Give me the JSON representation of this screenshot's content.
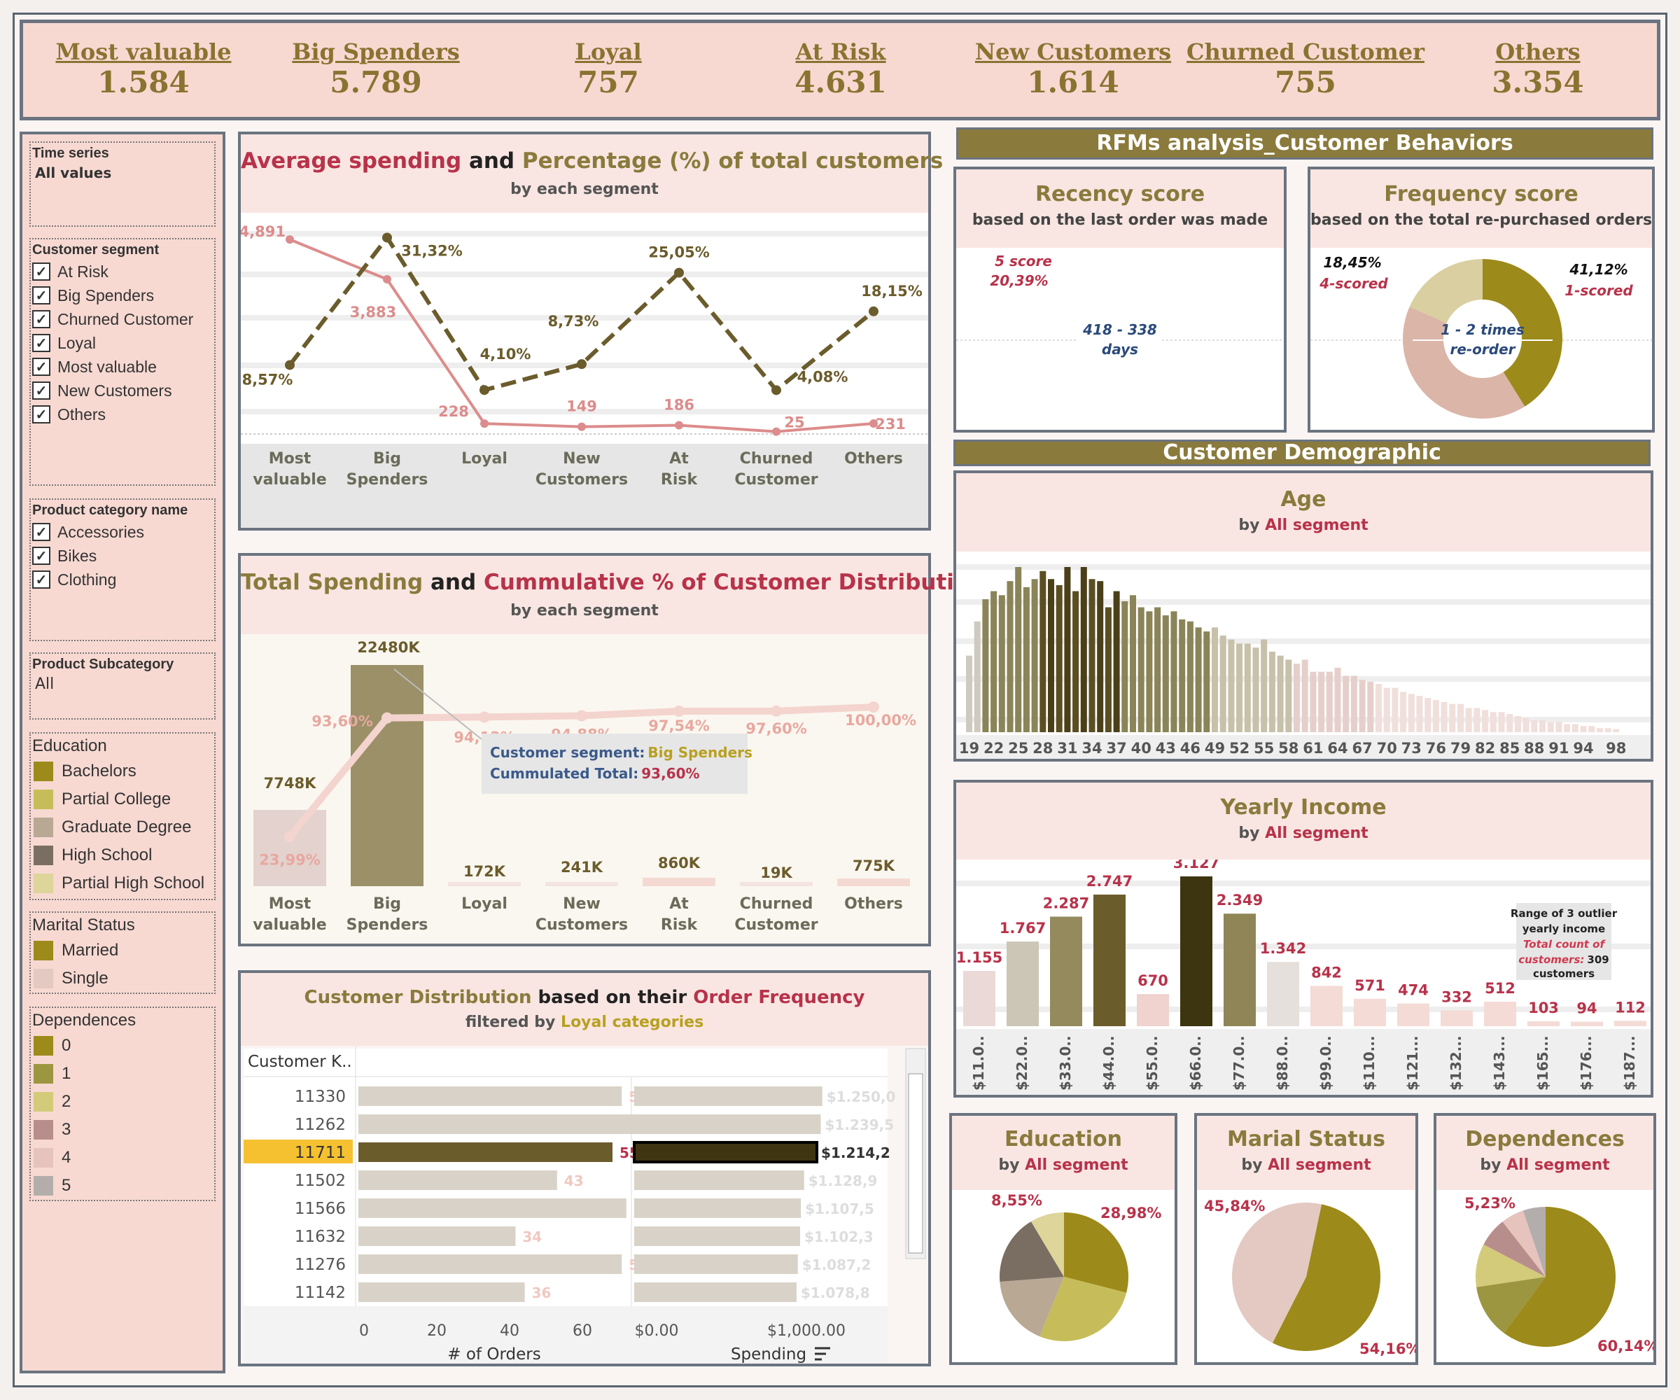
{
  "colors": {
    "olive": "#9c8a1a",
    "olive_dark": "#6b5c2c",
    "olive_light": "#c6bd5a",
    "rose": "#b8324a",
    "salmon": "#dc8c8c",
    "beige": "#d9cdb6",
    "panel_pink": "#f9e6e2",
    "filter_pink": "#f7d9d2",
    "tan_line": "#8a7a3c"
  },
  "kpis": [
    {
      "label": "Most valuable",
      "value": "1.584"
    },
    {
      "label": "Big Spenders",
      "value": "5.789"
    },
    {
      "label": "Loyal",
      "value": "757"
    },
    {
      "label": "At Risk",
      "value": "4.631"
    },
    {
      "label": "New Customers",
      "value": "1.614"
    },
    {
      "label": "Churned Customer",
      "value": "755"
    },
    {
      "label": "Others",
      "value": "3.354"
    }
  ],
  "filters": {
    "time": {
      "title": "Time series",
      "value": "All values"
    },
    "segment": {
      "title": "Customer segment",
      "items": [
        "At Risk",
        "Big Spenders",
        "Churned Customer",
        "Loyal",
        "Most valuable",
        "New Customers",
        "Others"
      ]
    },
    "category": {
      "title": "Product category name",
      "items": [
        "Accessories",
        "Bikes",
        "Clothing"
      ]
    },
    "subcategory": {
      "title": "Product Subcategory",
      "value": "All"
    },
    "education": {
      "title": "Education",
      "items": [
        {
          "label": "Bachelors",
          "color": "#9c8a1a"
        },
        {
          "label": "Partial College",
          "color": "#c6bd5a"
        },
        {
          "label": "Graduate Degree",
          "color": "#b8a894"
        },
        {
          "label": "High School",
          "color": "#7a6e62"
        },
        {
          "label": "Partial High School",
          "color": "#ddd59a"
        }
      ]
    },
    "marital": {
      "title": "Marital Status",
      "items": [
        {
          "label": "Married",
          "color": "#9c8a1a"
        },
        {
          "label": "Single",
          "color": "#e3c9c1"
        }
      ]
    },
    "dependences": {
      "title": "Dependences",
      "items": [
        {
          "label": "0",
          "color": "#9c8a1a"
        },
        {
          "label": "1",
          "color": "#9c9640"
        },
        {
          "label": "2",
          "color": "#d3cb7a"
        },
        {
          "label": "3",
          "color": "#b88e8c"
        },
        {
          "label": "4",
          "color": "#e6c3bd"
        },
        {
          "label": "5",
          "color": "#b3aeac"
        }
      ]
    }
  },
  "sections": {
    "rfm": "RFMs analysis_Customer Behaviors",
    "demo": "Customer Demographic"
  },
  "chart1": {
    "title_a": "Average spending",
    "title_and": " and ",
    "title_b": "Percentage (%) of total customers",
    "subtitle": "by each segment"
  },
  "chart2": {
    "title_a": "Total Spending",
    "title_and": " and ",
    "title_b": "Cummulative % of Customer Distribution",
    "subtitle": "by each segment",
    "tooltip_label1": "Customer segment:",
    "tooltip_value1": "Big Spenders",
    "tooltip_label2": "Cummulated Total:",
    "tooltip_value2": "93,60%"
  },
  "chart3": {
    "title_a": "Customer Distribution",
    "title_mid": " based on their ",
    "title_b": "Order Frequency",
    "subtitle_a": "filtered by ",
    "subtitle_b": "Loyal categories",
    "col_header": "Customer K..",
    "axis_orders": "# of Orders",
    "axis_spending": "Spending",
    "orders_ticks": [
      "0",
      "20",
      "40",
      "60"
    ],
    "spending_ticks": [
      "$0.00",
      "$1,000.00"
    ]
  },
  "recency": {
    "title": "Recency score",
    "subtitle": "based on the last order was made",
    "label_score": "5 score",
    "label_pct": "20,39%",
    "center1": "418 - 338",
    "center2": "days"
  },
  "frequency": {
    "title": "Frequency score",
    "subtitle": "based on the total re-purchased orders",
    "left_pct": "18,45%",
    "left_lbl": "4-scored",
    "right_pct": "41,12%",
    "right_lbl": "1-scored",
    "center1": "1 - 2 times",
    "center2": "re-order"
  },
  "age": {
    "title": "Age",
    "sub_a": "by ",
    "sub_b": "All segment"
  },
  "income": {
    "title": "Yearly Income",
    "sub_a": "by ",
    "sub_b": "All segment",
    "note1": "Range of 3 outlier",
    "note2": "yearly income",
    "note3": "Total count of",
    "note4": "customers:",
    "note5": "309",
    "note6": "customers"
  },
  "edu_pie": {
    "title": "Education",
    "sub_a": "by ",
    "sub_b": "All segment",
    "label_a": "8,55%",
    "label_b": "28,98%"
  },
  "mar_pie": {
    "title": "Marial Status",
    "sub_a": "by ",
    "sub_b": "All segment",
    "label_a": "45,84%",
    "label_b": "54,16%"
  },
  "dep_pie": {
    "title": "Dependences",
    "sub_a": "by ",
    "sub_b": "All segment",
    "label_a": "5,23%",
    "label_b": "60,14%"
  },
  "chart_data": [
    {
      "id": "avg_spending",
      "type": "line",
      "title": "Average spending and Percentage (%) of total customers",
      "categories": [
        "Most valuable",
        "Big Spenders",
        "Loyal",
        "New Customers",
        "At Risk",
        "Churned Customer",
        "Others"
      ],
      "series": [
        {
          "name": "Average spending",
          "values": [
            4891,
            3883,
            228,
            149,
            186,
            25,
            231
          ],
          "labels": [
            "4,891",
            "3,883",
            "228",
            "149",
            "186",
            "25",
            "231"
          ]
        },
        {
          "name": "Percentage (%) of total customers",
          "values": [
            8.57,
            31.32,
            4.1,
            8.73,
            25.05,
            4.08,
            18.15
          ],
          "labels": [
            "8,57%",
            "31,32%",
            "4,10%",
            "8,73%",
            "25,05%",
            "4,08%",
            "18,15%"
          ]
        }
      ]
    },
    {
      "id": "total_spending",
      "type": "bar",
      "title": "Total Spending and Cummulative % of Customer Distribution",
      "categories": [
        "Most valuable",
        "Big Spenders",
        "Loyal",
        "New Customers",
        "At Risk",
        "Churned Customer",
        "Others"
      ],
      "values": [
        7748,
        22480,
        172,
        241,
        860,
        19,
        775
      ],
      "labels": [
        "7748K",
        "22480K",
        "172K",
        "241K",
        "860K",
        "19K",
        "775K"
      ],
      "cumulative": [
        23.99,
        93.6,
        94.13,
        94.88,
        97.54,
        97.6,
        100.0
      ],
      "cumulative_labels": [
        "23,99%",
        "93,60%",
        "94,13%",
        "94,88%",
        "97,54%",
        "97,60%",
        "100,00%"
      ]
    },
    {
      "id": "order_frequency",
      "type": "bar",
      "title": "Customer Distribution based on their Order Frequency",
      "rows": [
        {
          "customer": "11330",
          "orders": 57,
          "spending": 1250.0,
          "spending_label": "$1.250,0"
        },
        {
          "customer": "11262",
          "orders": 63,
          "spending": 1239.5,
          "spending_label": "$1.239,5"
        },
        {
          "customer": "11711",
          "orders": 55,
          "spending": 1214.2,
          "spending_label": "$1.214,2",
          "selected": true
        },
        {
          "customer": "11502",
          "orders": 43,
          "spending": 1128.9,
          "spending_label": "$1.128,9"
        },
        {
          "customer": "11566",
          "orders": 58,
          "spending": 1107.5,
          "spending_label": "$1.107,5"
        },
        {
          "customer": "11632",
          "orders": 34,
          "spending": 1102.3,
          "spending_label": "$1.102,3"
        },
        {
          "customer": "11276",
          "orders": 57,
          "spending": 1087.2,
          "spending_label": "$1.087,2"
        },
        {
          "customer": "11142",
          "orders": 36,
          "spending": 1078.8,
          "spending_label": "$1.078,8"
        }
      ]
    },
    {
      "id": "recency_score",
      "type": "pie",
      "slices": [
        {
          "name": "5 score",
          "value": 20.39,
          "color": "#9c8a1a"
        },
        {
          "name": "other",
          "value": 79.61,
          "color": "#dbb5a8"
        }
      ]
    },
    {
      "id": "frequency_score",
      "type": "pie",
      "slices": [
        {
          "name": "1-scored",
          "value": 41.12,
          "color": "#9c8a1a"
        },
        {
          "name": "other",
          "value": 40.43,
          "color": "#dbb5a8"
        },
        {
          "name": "4-scored",
          "value": 18.45,
          "color": "#d9cfa0"
        }
      ]
    },
    {
      "id": "age",
      "type": "bar",
      "title": "Age",
      "tick_labels": [
        "19",
        "22",
        "25",
        "28",
        "31",
        "34",
        "37",
        "40",
        "43",
        "46",
        "49",
        "52",
        "55",
        "58",
        "61",
        "64",
        "67",
        "70",
        "73",
        "76",
        "79",
        "82",
        "85",
        "88",
        "91",
        "94",
        "98"
      ],
      "x_start": 19,
      "values": [
        38,
        55,
        66,
        70,
        68,
        75,
        82,
        72,
        76,
        80,
        76,
        73,
        82,
        70,
        82,
        76,
        75,
        62,
        70,
        65,
        68,
        62,
        60,
        62,
        58,
        60,
        56,
        55,
        52,
        50,
        52,
        48,
        46,
        44,
        44,
        42,
        46,
        40,
        38,
        36,
        34,
        36,
        30,
        30,
        30,
        32,
        28,
        28,
        26,
        25,
        24,
        22,
        22,
        20,
        19,
        18,
        17,
        16,
        15,
        14,
        14,
        12,
        12,
        11,
        10,
        10,
        9,
        8,
        7,
        6,
        6,
        5,
        5,
        4,
        4,
        3,
        3,
        2,
        2,
        1.5
      ]
    },
    {
      "id": "yearly_income",
      "type": "bar",
      "title": "Yearly Income",
      "categories": [
        "$11.0..",
        "$22.0..",
        "$33.0..",
        "$44.0..",
        "$55.0..",
        "$66.0..",
        "$77.0..",
        "$88.0..",
        "$99.0..",
        "$110...",
        "$121...",
        "$132...",
        "$143...",
        "$165...",
        "$176...",
        "$187..."
      ],
      "values": [
        1155,
        1767,
        2287,
        2747,
        670,
        3127,
        2349,
        1342,
        842,
        571,
        474,
        332,
        512,
        103,
        94,
        112
      ],
      "labels": [
        "1.155",
        "1.767",
        "2.287",
        "2.747",
        "670",
        "3.127",
        "2.349",
        "1.342",
        "842",
        "571",
        "474",
        "332",
        "512",
        "103",
        "94",
        "112"
      ]
    },
    {
      "id": "education_pie",
      "type": "pie",
      "slices": [
        {
          "name": "Bachelors",
          "value": 28.98,
          "color": "#9c8a1a"
        },
        {
          "name": "Partial College",
          "value": 27.2,
          "color": "#c6bd5a"
        },
        {
          "name": "Graduate Degree",
          "value": 17.6,
          "color": "#b8a894"
        },
        {
          "name": "High School",
          "value": 17.67,
          "color": "#7a6e62"
        },
        {
          "name": "Partial High School",
          "value": 8.55,
          "color": "#ddd59a"
        }
      ]
    },
    {
      "id": "marital_pie",
      "type": "pie",
      "slices": [
        {
          "name": "Married",
          "value": 54.16,
          "color": "#9c8a1a"
        },
        {
          "name": "Single",
          "value": 45.84,
          "color": "#e3c9c1"
        }
      ]
    },
    {
      "id": "dependences_pie",
      "type": "pie",
      "slices": [
        {
          "name": "0",
          "value": 60.14,
          "color": "#9c8a1a"
        },
        {
          "name": "1",
          "value": 12.5,
          "color": "#9c9640"
        },
        {
          "name": "2",
          "value": 10.0,
          "color": "#d3cb7a"
        },
        {
          "name": "3",
          "value": 6.8,
          "color": "#b88e8c"
        },
        {
          "name": "4",
          "value": 5.33,
          "color": "#e6c3bd"
        },
        {
          "name": "5",
          "value": 5.23,
          "color": "#b3aeac"
        }
      ]
    }
  ]
}
